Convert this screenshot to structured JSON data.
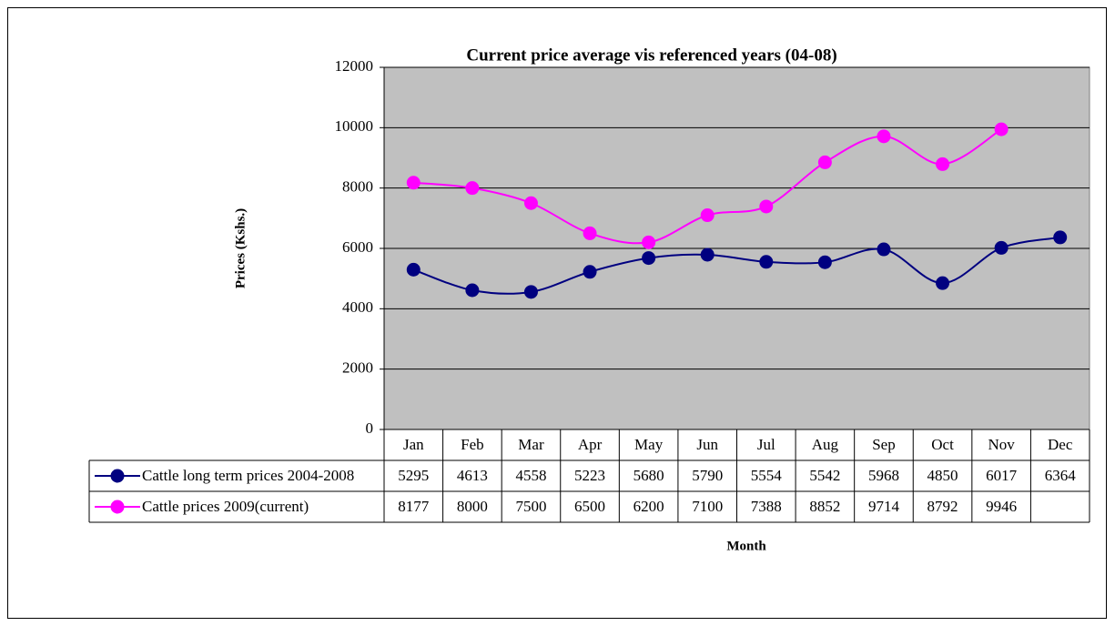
{
  "chart_data": {
    "type": "line",
    "title": "Current price average vis referenced years (04-08)",
    "y_label": "Prices (Kshs.)",
    "x_label": "Month",
    "categories": [
      "Jan",
      "Feb",
      "Mar",
      "Apr",
      "May",
      "Jun",
      "Jul",
      "Aug",
      "Sep",
      "Oct",
      "Nov",
      "Dec"
    ],
    "series": [
      {
        "name": "Cattle long term prices 2004-2008",
        "color": "#000080",
        "values": [
          5295,
          4613,
          4558,
          5223,
          5680,
          5790,
          5554,
          5542,
          5968,
          4850,
          6017,
          6364
        ]
      },
      {
        "name": "Cattle prices 2009(current)",
        "color": "#ff00ff",
        "values": [
          8177,
          8000,
          7500,
          6500,
          6200,
          7100,
          7388,
          8852,
          9714,
          8792,
          9946,
          null
        ]
      }
    ],
    "ylim": [
      0,
      12000
    ],
    "yticks": [
      0,
      2000,
      4000,
      6000,
      8000,
      10000,
      12000
    ],
    "grid": true,
    "plot_background": "#c0c0c0",
    "smooth": true
  }
}
